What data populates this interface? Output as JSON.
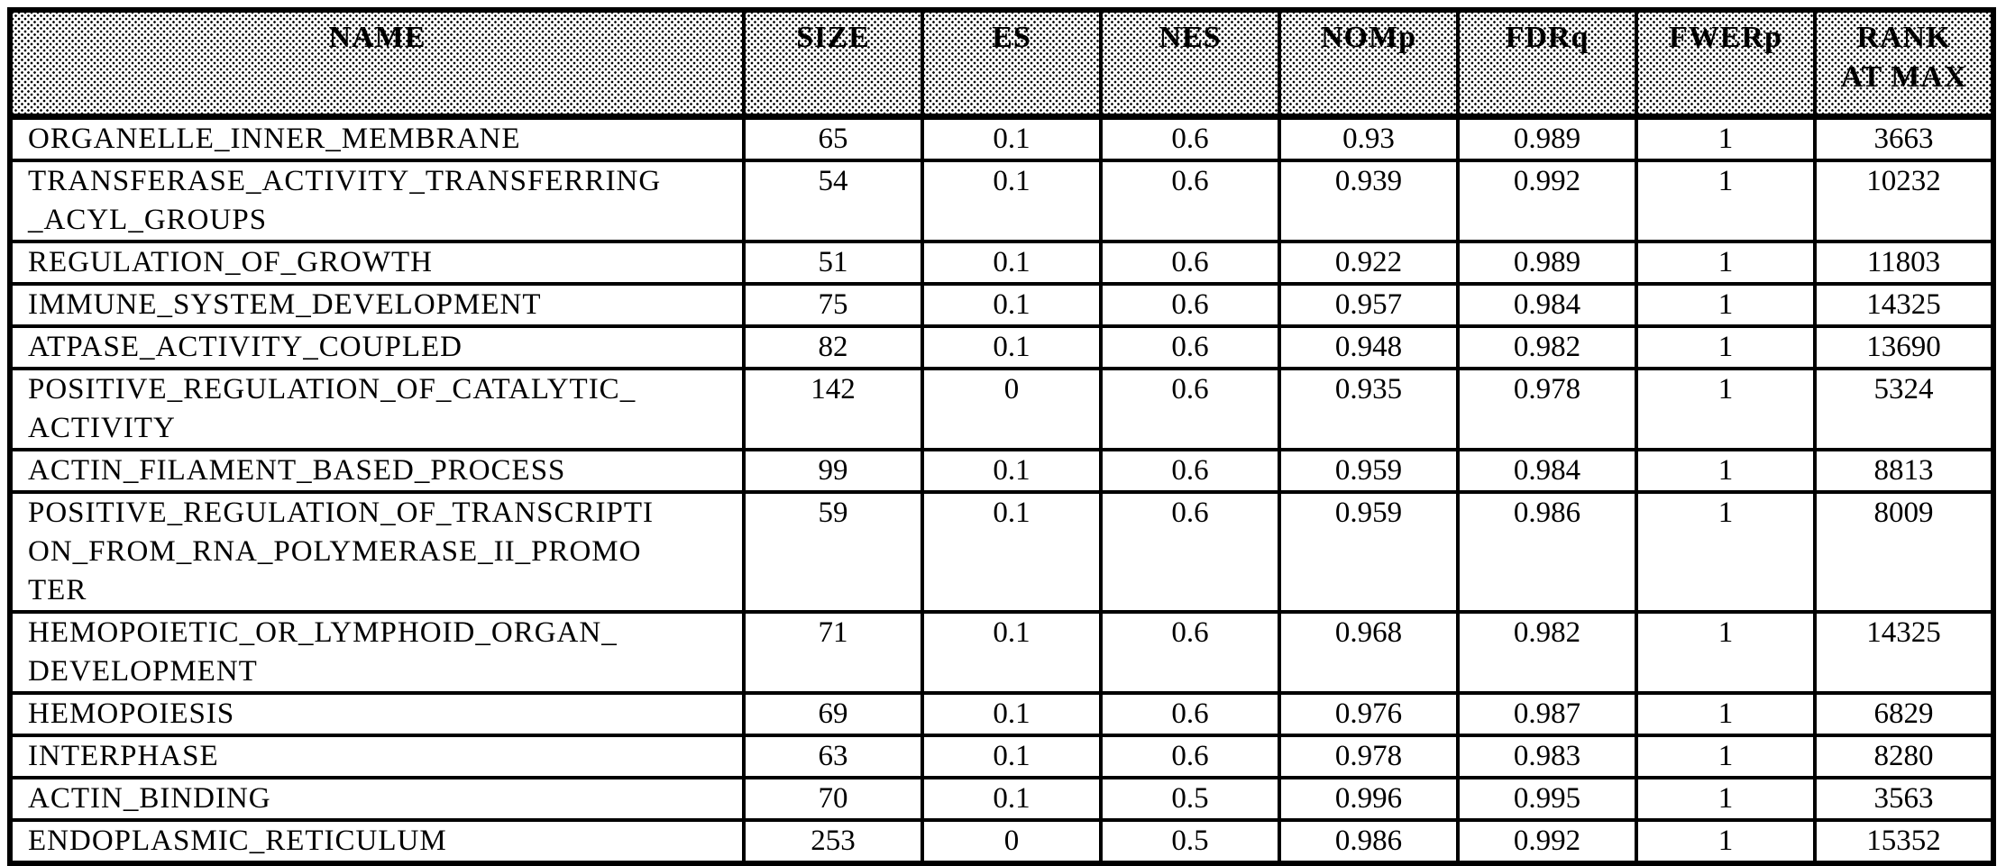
{
  "table": {
    "columns": [
      {
        "key": "name",
        "label": "NAME"
      },
      {
        "key": "size",
        "label": "SIZE"
      },
      {
        "key": "es",
        "label": "ES"
      },
      {
        "key": "nes",
        "label": "NES"
      },
      {
        "key": "nomp",
        "label": "NOMp"
      },
      {
        "key": "fdrq",
        "label": "FDRq"
      },
      {
        "key": "fwerp",
        "label": "FWERp"
      },
      {
        "key": "rank",
        "label": "RANK\nAT MAX"
      }
    ],
    "rows": [
      {
        "name": "ORGANELLE_INNER_MEMBRANE",
        "size": "65",
        "es": "0.1",
        "nes": "0.6",
        "nomp": "0.93",
        "fdrq": "0.989",
        "fwerp": "1",
        "rank": "3663"
      },
      {
        "name": "TRANSFERASE_ACTIVITY_TRANSFERRING\n_ACYL_GROUPS",
        "size": "54",
        "es": "0.1",
        "nes": "0.6",
        "nomp": "0.939",
        "fdrq": "0.992",
        "fwerp": "1",
        "rank": "10232"
      },
      {
        "name": "REGULATION_OF_GROWTH",
        "size": "51",
        "es": "0.1",
        "nes": "0.6",
        "nomp": "0.922",
        "fdrq": "0.989",
        "fwerp": "1",
        "rank": "11803"
      },
      {
        "name": "IMMUNE_SYSTEM_DEVELOPMENT",
        "size": "75",
        "es": "0.1",
        "nes": "0.6",
        "nomp": "0.957",
        "fdrq": "0.984",
        "fwerp": "1",
        "rank": "14325"
      },
      {
        "name": "ATPASE_ACTIVITY_COUPLED",
        "size": "82",
        "es": "0.1",
        "nes": "0.6",
        "nomp": "0.948",
        "fdrq": "0.982",
        "fwerp": "1",
        "rank": "13690"
      },
      {
        "name": "POSITIVE_REGULATION_OF_CATALYTIC_\nACTIVITY",
        "size": "142",
        "es": "0",
        "nes": "0.6",
        "nomp": "0.935",
        "fdrq": "0.978",
        "fwerp": "1",
        "rank": "5324"
      },
      {
        "name": "ACTIN_FILAMENT_BASED_PROCESS",
        "size": "99",
        "es": "0.1",
        "nes": "0.6",
        "nomp": "0.959",
        "fdrq": "0.984",
        "fwerp": "1",
        "rank": "8813"
      },
      {
        "name": "POSITIVE_REGULATION_OF_TRANSCRIPTI\nON_FROM_RNA_POLYMERASE_II_PROMO\nTER",
        "size": "59",
        "es": "0.1",
        "nes": "0.6",
        "nomp": "0.959",
        "fdrq": "0.986",
        "fwerp": "1",
        "rank": "8009"
      },
      {
        "name": "HEMOPOIETIC_OR_LYMPHOID_ORGAN_\nDEVELOPMENT",
        "size": "71",
        "es": "0.1",
        "nes": "0.6",
        "nomp": "0.968",
        "fdrq": "0.982",
        "fwerp": "1",
        "rank": "14325"
      },
      {
        "name": "HEMOPOIESIS",
        "size": "69",
        "es": "0.1",
        "nes": "0.6",
        "nomp": "0.976",
        "fdrq": "0.987",
        "fwerp": "1",
        "rank": "6829"
      },
      {
        "name": "INTERPHASE",
        "size": "63",
        "es": "0.1",
        "nes": "0.6",
        "nomp": "0.978",
        "fdrq": "0.983",
        "fwerp": "1",
        "rank": "8280"
      },
      {
        "name": "ACTIN_BINDING",
        "size": "70",
        "es": "0.1",
        "nes": "0.5",
        "nomp": "0.996",
        "fdrq": "0.995",
        "fwerp": "1",
        "rank": "3563"
      },
      {
        "name": "ENDOPLASMIC_RETICULUM",
        "size": "253",
        "es": "0",
        "nes": "0.5",
        "nomp": "0.986",
        "fdrq": "0.992",
        "fwerp": "1",
        "rank": "15352"
      }
    ]
  }
}
